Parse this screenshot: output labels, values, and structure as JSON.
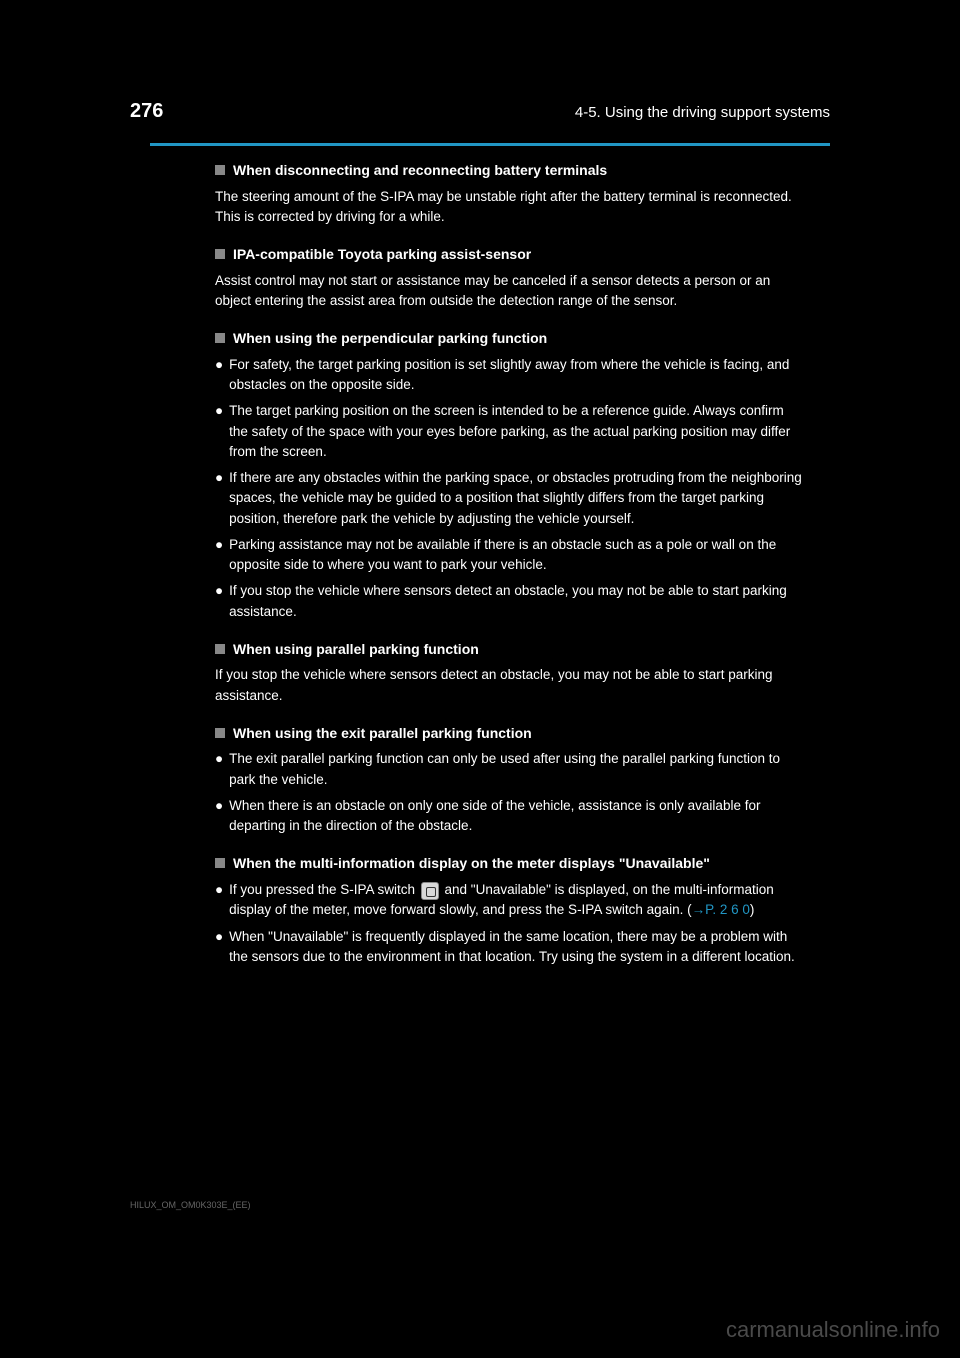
{
  "header": {
    "page_number": "276",
    "chapter": "4-5. Using the driving support systems"
  },
  "divider_color": "#2196c4",
  "sections": [
    {
      "title": "When disconnecting and reconnecting battery terminals",
      "body": "The steering amount of the S-IPA may be unstable right after the battery terminal is reconnected. This is corrected by driving for a while."
    },
    {
      "title": "IPA-compatible Toyota parking assist-sensor",
      "body": "Assist control may not start or assistance may be canceled if a sensor detects a person or an object entering the assist area from outside the detection range of the sensor."
    },
    {
      "title": "When using the perpendicular parking function",
      "sub": [
        "For safety, the target parking position is set slightly away from where the vehicle is facing, and obstacles on the opposite side.",
        "The target parking position on the screen is intended to be a reference guide. Always confirm the safety of the space with your eyes before parking, as the actual parking position may differ from the screen.",
        "If there are any obstacles within the parking space, or obstacles protruding from the neighboring spaces, the vehicle may be guided to a position that slightly differs from the target parking position, therefore park the vehicle by adjusting the vehicle yourself.",
        "Parking assistance may not be available if there is an obstacle such as a pole or wall on the opposite side to where you want to park your vehicle.",
        "If you stop the vehicle where sensors detect an obstacle, you may not be able to start parking assistance."
      ]
    },
    {
      "title": "When using parallel parking function",
      "body": "If you stop the vehicle where sensors detect an obstacle, you may not be able to start parking assistance."
    },
    {
      "title": "When using the exit parallel parking function",
      "sub": [
        "The exit parallel parking function can only be used after using the parallel parking function to park the vehicle.",
        "When there is an obstacle on only one side of the vehicle, assistance is only available for departing in the direction of the obstacle."
      ]
    },
    {
      "title": "When the multi-information display on the meter displays \"Unavailable\"",
      "sub": [
        "If you pressed the S-IPA switch __ICON__ and \"Unavailable\" is displayed, on the multi-information display of the meter, move forward slowly, and press the S-IPA switch again.",
        "When \"Unavailable\" is frequently displayed in the same location, there may be a problem with the sensors due to the environment in that location. Try using the system in a different location."
      ],
      "page_ref": "→P. 2 6 0"
    }
  ],
  "model_code": "HILUX_OM_OM0K303E_(EE)",
  "watermark": "carmanualsonline.info"
}
